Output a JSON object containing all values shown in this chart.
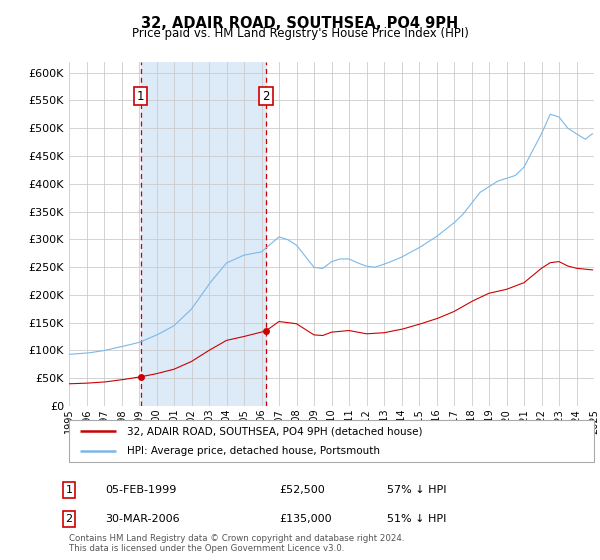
{
  "title": "32, ADAIR ROAD, SOUTHSEA, PO4 9PH",
  "subtitle": "Price paid vs. HM Land Registry's House Price Index (HPI)",
  "ylim": [
    0,
    620000
  ],
  "yticks": [
    0,
    50000,
    100000,
    150000,
    200000,
    250000,
    300000,
    350000,
    400000,
    450000,
    500000,
    550000,
    600000
  ],
  "background_color": "#ffffff",
  "grid_color": "#cccccc",
  "hpi_color": "#7ab8e8",
  "price_color": "#cc0000",
  "vline_color": "#cc0000",
  "vline_style": "--",
  "shade_color": "#ddeaf7",
  "purchase1_year": 1999.1,
  "purchase2_year": 2006.25,
  "purchase1_price": 52500,
  "purchase2_price": 135000,
  "purchase1_label": "1",
  "purchase2_label": "2",
  "legend_entry1": "32, ADAIR ROAD, SOUTHSEA, PO4 9PH (detached house)",
  "legend_entry2": "HPI: Average price, detached house, Portsmouth",
  "table_rows": [
    {
      "num": "1",
      "date": "05-FEB-1999",
      "price": "£52,500",
      "rel": "57% ↓ HPI"
    },
    {
      "num": "2",
      "date": "30-MAR-2006",
      "price": "£135,000",
      "rel": "51% ↓ HPI"
    }
  ],
  "footer": "Contains HM Land Registry data © Crown copyright and database right 2024.\nThis data is licensed under the Open Government Licence v3.0."
}
